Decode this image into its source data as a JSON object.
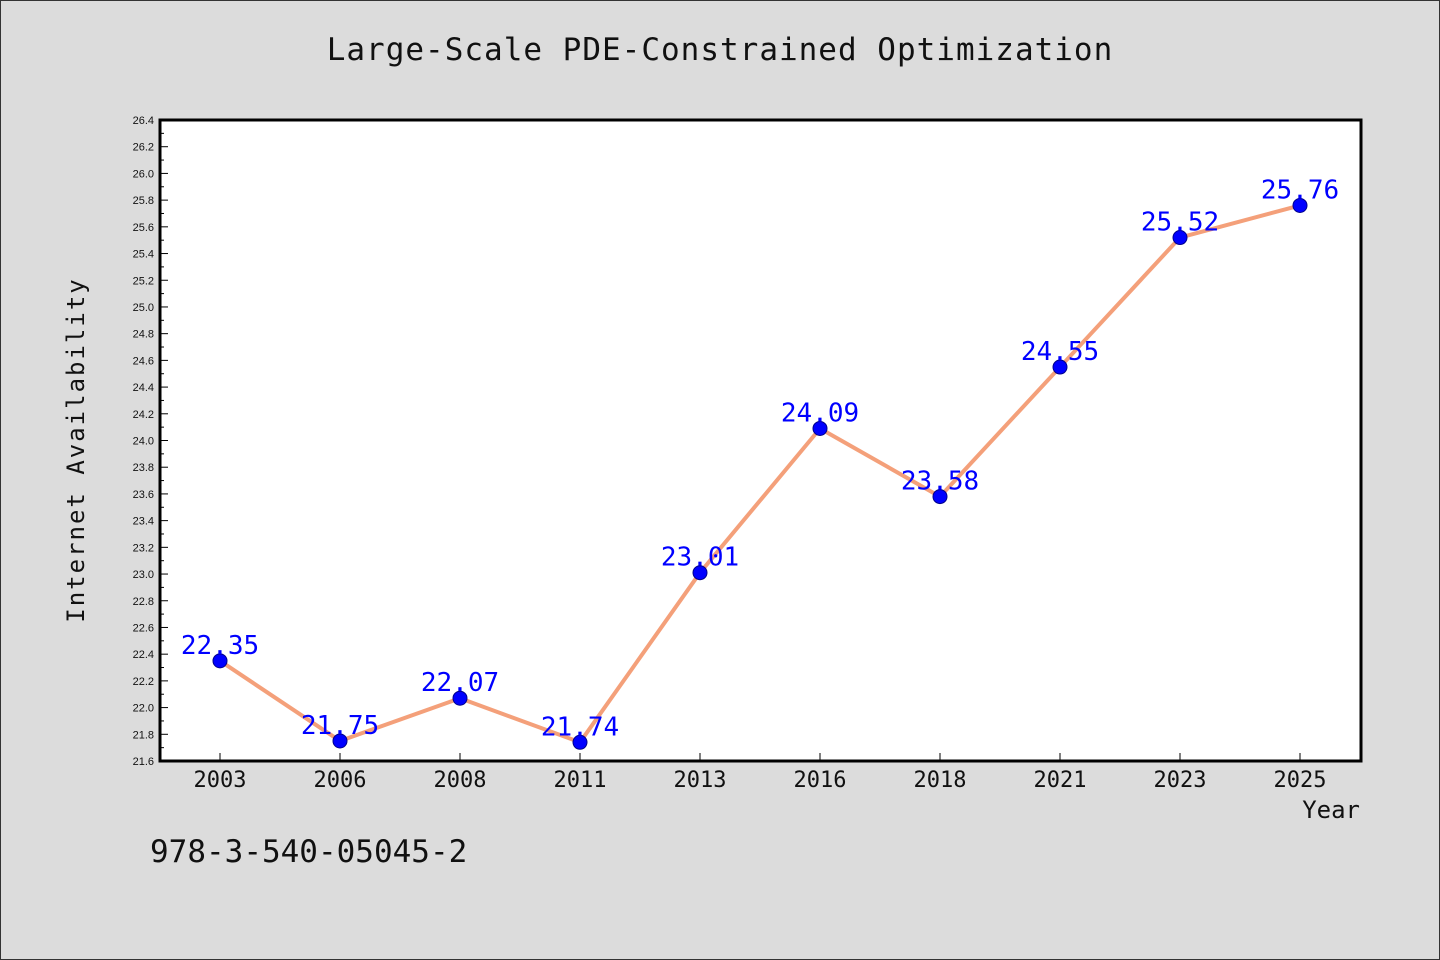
{
  "chart_data": {
    "type": "line",
    "title": "Large-Scale PDE-Constrained Optimization",
    "xlabel": "Year",
    "ylabel": "Internet Availability",
    "categories": [
      "2003",
      "2006",
      "2008",
      "2011",
      "2013",
      "2016",
      "2018",
      "2021",
      "2023",
      "2025"
    ],
    "values": [
      22.35,
      21.75,
      22.07,
      21.74,
      23.01,
      24.09,
      23.58,
      24.55,
      25.52,
      25.76
    ],
    "ylim": [
      21.6,
      26.4
    ],
    "yticks": [
      "21.6",
      "21.8",
      "22.0",
      "22.2",
      "22.4",
      "22.6",
      "22.8",
      "23.0",
      "23.2",
      "23.4",
      "23.6",
      "23.8",
      "24.0",
      "24.2",
      "24.4",
      "24.6",
      "24.8",
      "25.0",
      "25.2",
      "25.4",
      "25.6",
      "25.8",
      "26.0",
      "26.2",
      "26.4"
    ],
    "data_labels": [
      "22.35",
      "21.75",
      "22.07",
      "21.74",
      "23.01",
      "24.09",
      "23.58",
      "24.55",
      "25.52",
      "25.76"
    ],
    "grid": false,
    "colors": {
      "line": "#f4a07a",
      "marker": "#0000ff",
      "label": "#0000ff",
      "background": "#dcdcdc",
      "plot_area": "#ffffff"
    }
  },
  "annotation": "978-3-540-05045-2"
}
